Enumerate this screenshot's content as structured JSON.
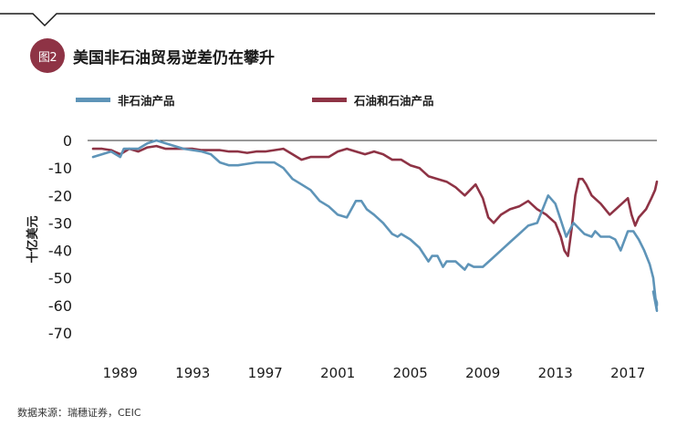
{
  "header": {
    "badge": "图2",
    "title": "美国非石油贸易逆差仍在攀升"
  },
  "source": "数据来源：瑞穗证券，CEIC",
  "colors": {
    "accent": "#8e3345",
    "non_oil": "#5e94b8",
    "oil": "#8e3345",
    "axis": "#333333"
  },
  "chart_data": {
    "type": "line",
    "title": "美国非石油贸易逆差仍在攀升",
    "xlabel": "",
    "ylabel": "十亿美元",
    "xlim": [
      1987.2,
      2018.6
    ],
    "ylim": [
      -75,
      3
    ],
    "x_ticks": [
      1989,
      1993,
      1997,
      2001,
      2005,
      2009,
      2013,
      2017
    ],
    "x_tick_labels": [
      "1989",
      "1993",
      "1997",
      "2001",
      "2005",
      "2009",
      "2013",
      "2017"
    ],
    "y_ticks": [
      0,
      -10,
      -20,
      -30,
      -40,
      -50,
      -60,
      -70
    ],
    "y_tick_labels": [
      "0",
      "-10",
      "-20",
      "-30",
      "-40",
      "-50",
      "-60",
      "-70"
    ],
    "series": [
      {
        "name": "非石油产品",
        "color": "#5e94b8",
        "points": [
          [
            1987.5,
            -6
          ],
          [
            1988,
            -5
          ],
          [
            1988.5,
            -4
          ],
          [
            1989,
            -6
          ],
          [
            1989.2,
            -3
          ],
          [
            1990,
            -3
          ],
          [
            1990.5,
            -1
          ],
          [
            1991,
            0
          ],
          [
            1991.5,
            -1
          ],
          [
            1992,
            -2
          ],
          [
            1992.5,
            -3
          ],
          [
            1993,
            -3.5
          ],
          [
            1993.5,
            -4
          ],
          [
            1994,
            -5
          ],
          [
            1994.5,
            -8
          ],
          [
            1995,
            -9
          ],
          [
            1995.5,
            -9
          ],
          [
            1996,
            -8.5
          ],
          [
            1996.5,
            -8
          ],
          [
            1997,
            -8
          ],
          [
            1997.5,
            -8
          ],
          [
            1998,
            -10
          ],
          [
            1998.5,
            -14
          ],
          [
            1999,
            -16
          ],
          [
            1999.5,
            -18
          ],
          [
            2000,
            -22
          ],
          [
            2000.5,
            -24
          ],
          [
            2001,
            -27
          ],
          [
            2001.5,
            -28
          ],
          [
            2002,
            -22
          ],
          [
            2002.3,
            -22
          ],
          [
            2002.6,
            -25
          ],
          [
            2003,
            -27
          ],
          [
            2003.5,
            -30
          ],
          [
            2004,
            -34
          ],
          [
            2004.3,
            -35
          ],
          [
            2004.5,
            -34
          ],
          [
            2005,
            -36
          ],
          [
            2005.5,
            -39
          ],
          [
            2006,
            -44
          ],
          [
            2006.2,
            -42
          ],
          [
            2006.5,
            -42
          ],
          [
            2006.8,
            -46
          ],
          [
            2007,
            -44
          ],
          [
            2007.5,
            -44
          ],
          [
            2008,
            -47
          ],
          [
            2008.2,
            -45
          ],
          [
            2008.5,
            -46
          ],
          [
            2009,
            -46
          ],
          [
            2009.5,
            -43
          ],
          [
            2010,
            -40
          ],
          [
            2010.5,
            -37
          ],
          [
            2011,
            -34
          ],
          [
            2011.5,
            -31
          ],
          [
            2012,
            -30
          ],
          [
            2012.3,
            -25
          ],
          [
            2012.6,
            -20
          ],
          [
            2013,
            -23
          ],
          [
            2013.3,
            -29
          ],
          [
            2013.6,
            -35
          ],
          [
            2014,
            -30
          ],
          [
            2014.3,
            -32
          ],
          [
            2014.6,
            -34
          ],
          [
            2015,
            -35
          ],
          [
            2015.2,
            -33
          ],
          [
            2015.5,
            -35
          ],
          [
            2016,
            -35
          ],
          [
            2016.3,
            -36
          ],
          [
            2016.6,
            -40
          ],
          [
            2017,
            -33
          ],
          [
            2017.3,
            -33
          ],
          [
            2017.6,
            -36
          ],
          [
            2017.9,
            -40
          ],
          [
            2018.2,
            -45
          ],
          [
            2018.4,
            -50
          ],
          [
            2018.5,
            -56
          ],
          [
            2018.6,
            -62
          ],
          [
            2018.4,
            -55
          ],
          [
            2018.5,
            -57
          ],
          [
            2018.6,
            -59
          ],
          [
            2018.6,
            -60
          ]
        ]
      },
      {
        "name": "石油和石油产品",
        "color": "#8e3345",
        "points": [
          [
            1987.5,
            -3
          ],
          [
            1988,
            -3
          ],
          [
            1988.5,
            -3.5
          ],
          [
            1989,
            -5
          ],
          [
            1989.5,
            -3
          ],
          [
            1990,
            -4
          ],
          [
            1990.5,
            -2.5
          ],
          [
            1991,
            -2
          ],
          [
            1991.5,
            -3
          ],
          [
            1992,
            -3
          ],
          [
            1992.5,
            -3
          ],
          [
            1993,
            -3
          ],
          [
            1993.5,
            -3.5
          ],
          [
            1994,
            -3.5
          ],
          [
            1994.5,
            -3.5
          ],
          [
            1995,
            -4
          ],
          [
            1995.5,
            -4
          ],
          [
            1996,
            -4.5
          ],
          [
            1996.5,
            -4
          ],
          [
            1997,
            -4
          ],
          [
            1997.5,
            -3.5
          ],
          [
            1998,
            -3
          ],
          [
            1998.5,
            -5
          ],
          [
            1999,
            -7
          ],
          [
            1999.5,
            -6
          ],
          [
            2000,
            -6
          ],
          [
            2000.5,
            -6
          ],
          [
            2001,
            -4
          ],
          [
            2001.5,
            -3
          ],
          [
            2002,
            -4
          ],
          [
            2002.5,
            -5
          ],
          [
            2003,
            -4
          ],
          [
            2003.5,
            -5
          ],
          [
            2004,
            -7
          ],
          [
            2004.5,
            -7
          ],
          [
            2005,
            -9
          ],
          [
            2005.5,
            -10
          ],
          [
            2006,
            -13
          ],
          [
            2006.5,
            -14
          ],
          [
            2007,
            -15
          ],
          [
            2007.5,
            -17
          ],
          [
            2008,
            -20
          ],
          [
            2008.3,
            -18
          ],
          [
            2008.6,
            -16
          ],
          [
            2009,
            -21
          ],
          [
            2009.3,
            -28
          ],
          [
            2009.6,
            -30
          ],
          [
            2010,
            -27
          ],
          [
            2010.5,
            -25
          ],
          [
            2011,
            -24
          ],
          [
            2011.5,
            -22
          ],
          [
            2012,
            -25
          ],
          [
            2012.5,
            -27
          ],
          [
            2013,
            -30
          ],
          [
            2013.3,
            -35
          ],
          [
            2013.5,
            -40
          ],
          [
            2013.7,
            -42
          ],
          [
            2013.9,
            -32
          ],
          [
            2014.1,
            -20
          ],
          [
            2014.3,
            -14
          ],
          [
            2014.5,
            -14
          ],
          [
            2014.7,
            -16
          ],
          [
            2015,
            -20
          ],
          [
            2015.5,
            -23
          ],
          [
            2016,
            -27
          ],
          [
            2016.5,
            -24
          ],
          [
            2017,
            -21
          ],
          [
            2017.2,
            -27
          ],
          [
            2017.4,
            -31
          ],
          [
            2017.6,
            -28
          ],
          [
            2018,
            -25
          ],
          [
            2018.3,
            -21
          ],
          [
            2018.5,
            -18
          ],
          [
            2018.6,
            -15
          ]
        ]
      }
    ]
  }
}
